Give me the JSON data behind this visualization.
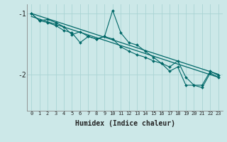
{
  "xlabel": "Humidex (Indice chaleur)",
  "bg_color": "#cce8e8",
  "grid_color": "#aad4d4",
  "line_color": "#006868",
  "xlim": [
    -0.5,
    23.5
  ],
  "ylim": [
    -2.6,
    -0.85
  ],
  "yticks": [
    -2.0,
    -1.0
  ],
  "xticks": [
    0,
    1,
    2,
    3,
    4,
    5,
    6,
    7,
    8,
    9,
    10,
    11,
    12,
    13,
    14,
    15,
    16,
    17,
    18,
    19,
    20,
    21,
    22,
    23
  ],
  "line1_x": [
    0,
    1,
    2,
    3,
    4,
    5,
    6,
    7,
    8,
    9,
    10,
    11,
    12,
    13,
    14,
    15,
    16,
    17,
    18,
    19,
    20,
    21,
    22,
    23
  ],
  "line1_y": [
    -1.0,
    -1.12,
    -1.1,
    -1.15,
    -1.22,
    -1.35,
    -1.3,
    -1.38,
    -1.42,
    -1.38,
    -0.95,
    -1.32,
    -1.48,
    -1.52,
    -1.62,
    -1.72,
    -1.82,
    -1.88,
    -1.78,
    -2.05,
    -2.18,
    -2.18,
    -1.95,
    -2.02
  ],
  "line2_x": [
    0,
    1,
    2,
    3,
    4,
    5,
    6,
    7,
    8,
    9,
    10,
    11,
    12,
    13,
    14,
    15,
    16,
    17,
    18,
    19,
    20,
    21,
    22,
    23
  ],
  "line2_y": [
    -1.0,
    -1.12,
    -1.15,
    -1.2,
    -1.28,
    -1.32,
    -1.48,
    -1.38,
    -1.42,
    -1.38,
    -1.42,
    -1.55,
    -1.62,
    -1.68,
    -1.72,
    -1.78,
    -1.82,
    -1.95,
    -1.88,
    -2.18,
    -2.18,
    -2.22,
    -1.98,
    -2.05
  ],
  "trend1_x": [
    0,
    23
  ],
  "trend1_y": [
    -1.0,
    -2.0
  ],
  "trend2_x": [
    0,
    23
  ],
  "trend2_y": [
    -1.05,
    -2.05
  ]
}
